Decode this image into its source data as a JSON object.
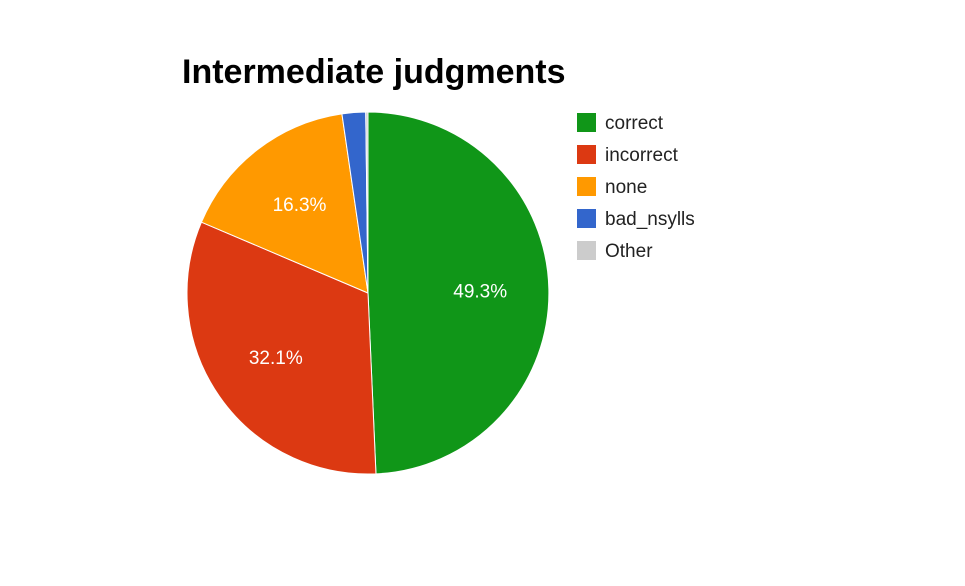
{
  "chart_data": {
    "type": "pie",
    "title": "Intermediate judgments",
    "legend_position": "right",
    "slices": [
      {
        "name": "correct",
        "percent": 49.3,
        "label": "49.3%",
        "color": "#109618"
      },
      {
        "name": "incorrect",
        "percent": 32.1,
        "label": "32.1%",
        "color": "#dc3912"
      },
      {
        "name": "none",
        "percent": 16.3,
        "label": "16.3%",
        "color": "#ff9900"
      },
      {
        "name": "bad_nsylls",
        "percent": 2.1,
        "label": "",
        "color": "#3366cc"
      },
      {
        "name": "Other",
        "percent": 0.2,
        "label": "",
        "color": "#cccccc"
      }
    ]
  }
}
